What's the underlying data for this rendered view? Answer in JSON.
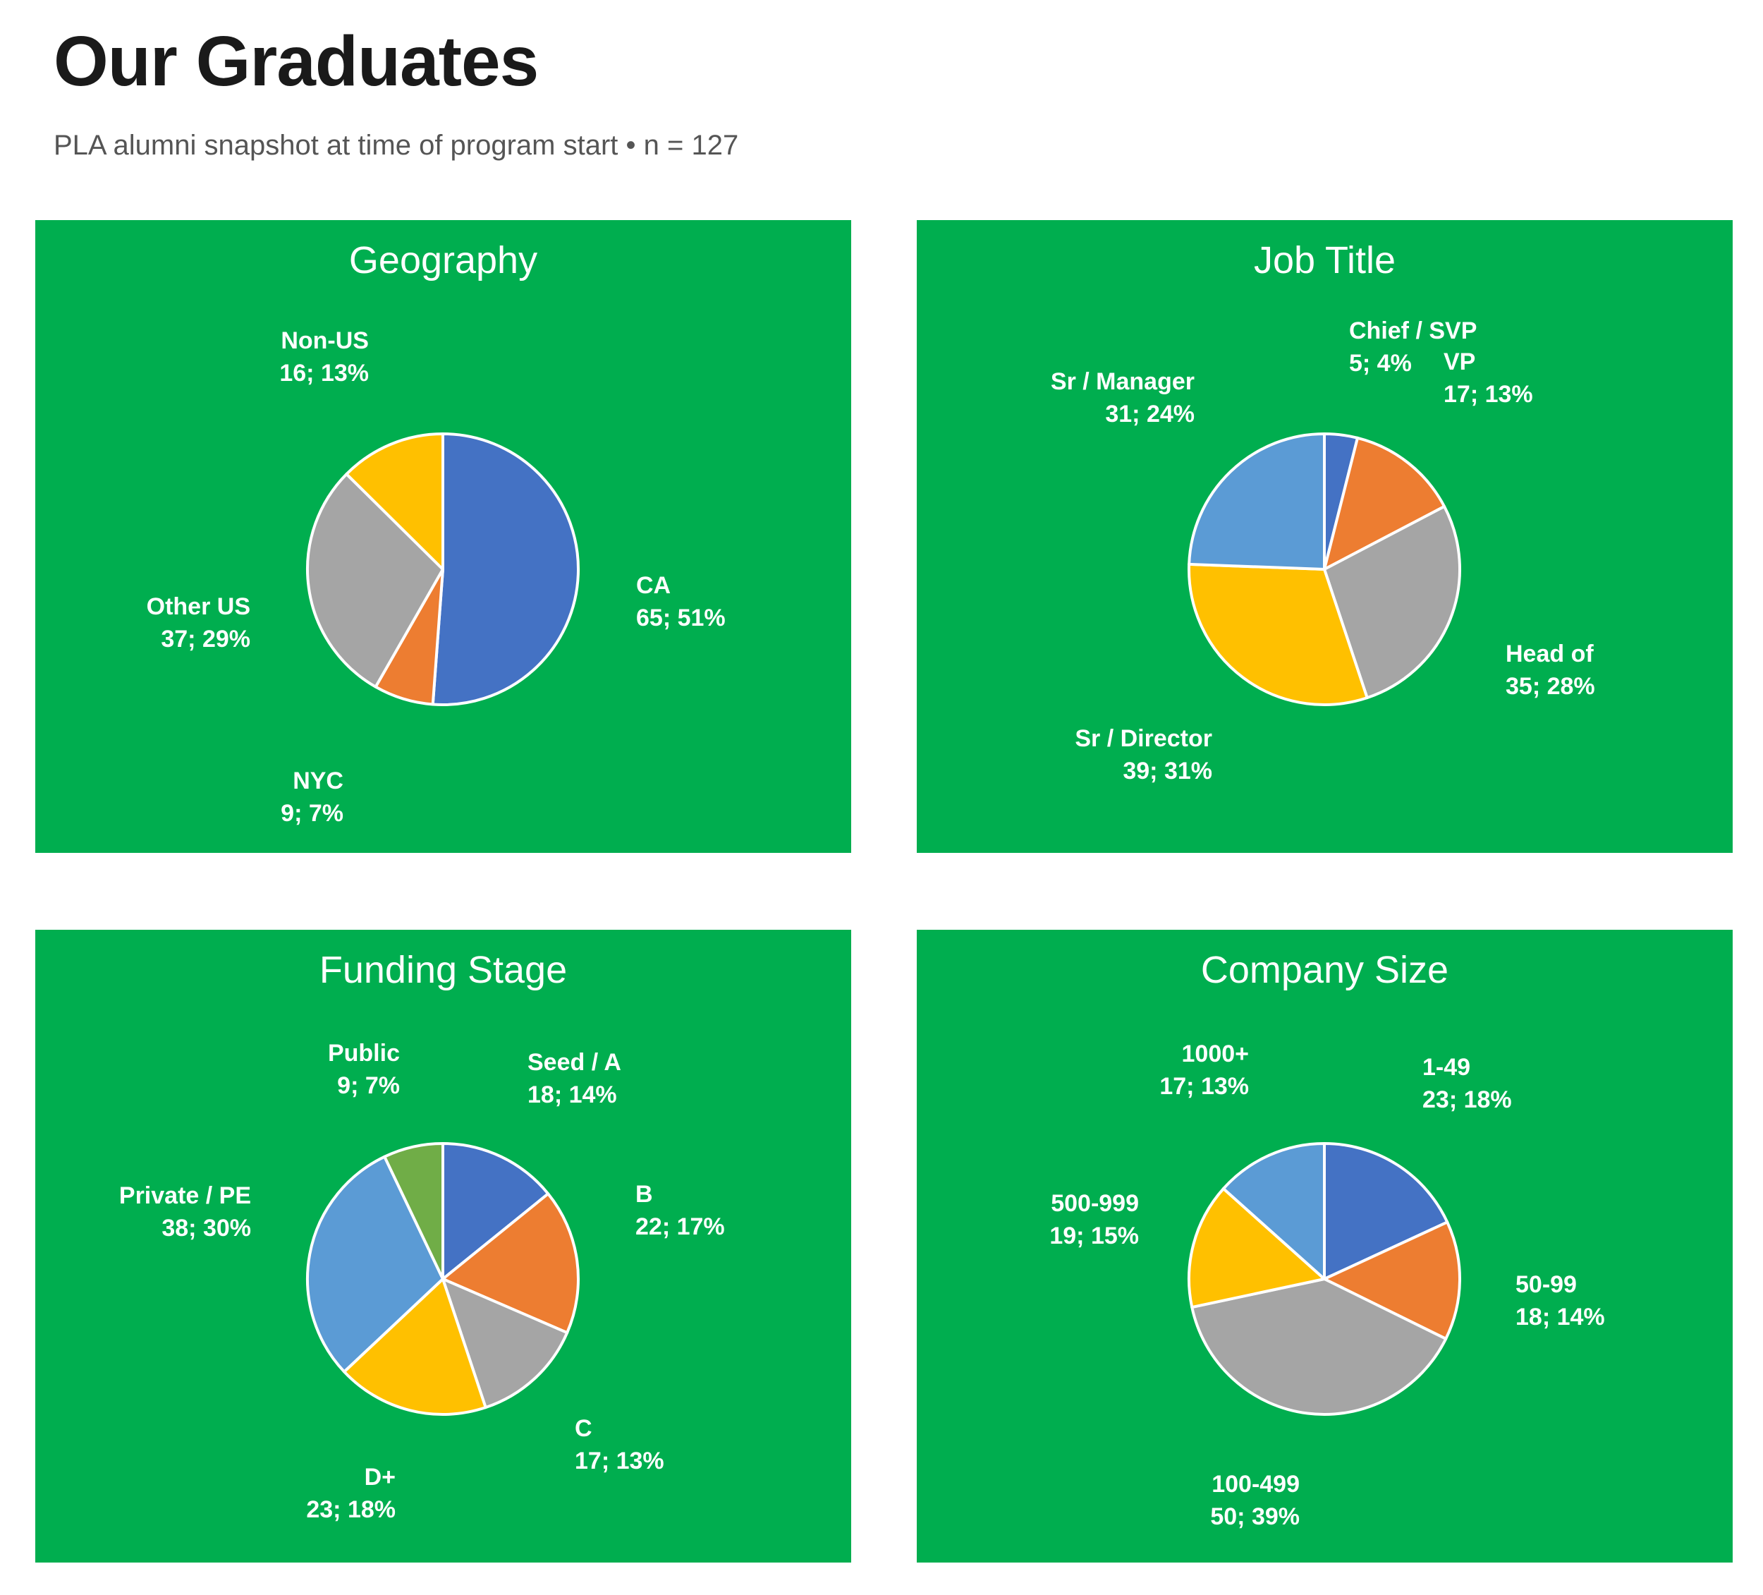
{
  "header": {
    "title": "Our Graduates",
    "subtitle": "PLA alumni snapshot at time of program start  •  n = 127"
  },
  "colors": {
    "panel_background": "#00ae4f",
    "slice_border": "#ffffff",
    "blue": "#4472c4",
    "orange": "#ed7d31",
    "gray": "#a5a5a5",
    "yellow": "#ffc000",
    "light_blue": "#5b9bd5",
    "green": "#70ad47"
  },
  "chart_data": [
    {
      "type": "pie",
      "title": "Geography",
      "slices": [
        {
          "name": "CA",
          "value": 65,
          "percent": "51%",
          "display": "65; 51%",
          "color": "#4472c4"
        },
        {
          "name": "NYC",
          "value": 9,
          "percent": "7%",
          "display": "9; 7%",
          "color": "#ed7d31"
        },
        {
          "name": "Other US",
          "value": 37,
          "percent": "29%",
          "display": "37; 29%",
          "color": "#a5a5a5"
        },
        {
          "name": "Non-US",
          "value": 16,
          "percent": "13%",
          "display": "16; 13%",
          "color": "#ffc000"
        }
      ]
    },
    {
      "type": "pie",
      "title": "Job Title",
      "slices": [
        {
          "name": "Chief / SVP",
          "value": 5,
          "percent": "4%",
          "display": "5; 4%",
          "color": "#4472c4"
        },
        {
          "name": "VP",
          "value": 17,
          "percent": "13%",
          "display": "17; 13%",
          "color": "#ed7d31"
        },
        {
          "name": "Head of",
          "value": 35,
          "percent": "28%",
          "display": "35; 28%",
          "color": "#a5a5a5"
        },
        {
          "name": "Sr / Director",
          "value": 39,
          "percent": "31%",
          "display": "39; 31%",
          "color": "#ffc000"
        },
        {
          "name": "Sr / Manager",
          "value": 31,
          "percent": "24%",
          "display": "31; 24%",
          "color": "#5b9bd5"
        }
      ]
    },
    {
      "type": "pie",
      "title": "Funding Stage",
      "slices": [
        {
          "name": "Seed / A",
          "value": 18,
          "percent": "14%",
          "display": "18; 14%",
          "color": "#4472c4"
        },
        {
          "name": "B",
          "value": 22,
          "percent": "17%",
          "display": "22; 17%",
          "color": "#ed7d31"
        },
        {
          "name": "C",
          "value": 17,
          "percent": "13%",
          "display": "17; 13%",
          "color": "#a5a5a5"
        },
        {
          "name": "D+",
          "value": 23,
          "percent": "18%",
          "display": "23; 18%",
          "color": "#ffc000"
        },
        {
          "name": "Private / PE",
          "value": 38,
          "percent": "30%",
          "display": "38; 30%",
          "color": "#5b9bd5"
        },
        {
          "name": "Public",
          "value": 9,
          "percent": "7%",
          "display": "9; 7%",
          "color": "#70ad47"
        }
      ]
    },
    {
      "type": "pie",
      "title": "Company Size",
      "slices": [
        {
          "name": "1-49",
          "value": 23,
          "percent": "18%",
          "display": "23; 18%",
          "color": "#4472c4"
        },
        {
          "name": "50-99",
          "value": 18,
          "percent": "14%",
          "display": "18; 14%",
          "color": "#ed7d31"
        },
        {
          "name": "100-499",
          "value": 50,
          "percent": "39%",
          "display": "50; 39%",
          "color": "#a5a5a5"
        },
        {
          "name": "500-999",
          "value": 19,
          "percent": "15%",
          "display": "19; 15%",
          "color": "#ffc000"
        },
        {
          "name": "1000+",
          "value": 17,
          "percent": "13%",
          "display": "17; 13%",
          "color": "#5b9bd5"
        }
      ]
    }
  ]
}
